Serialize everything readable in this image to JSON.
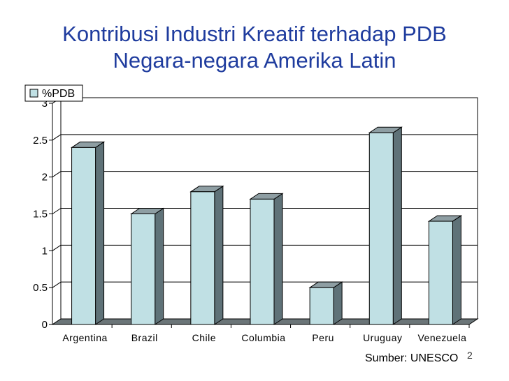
{
  "slide": {
    "title_line1": "Kontribusi Industri Kreatif terhadap PDB",
    "title_line2": "Negara-negara Amerika Latin",
    "source": "Sumber: UNESCO",
    "slide_number": "2"
  },
  "chart_data": {
    "type": "bar",
    "style": "3d",
    "categories": [
      "Argentina",
      "Brazil",
      "Chile",
      "Columbia",
      "Peru",
      "Uruguay",
      "Venezuela"
    ],
    "series": [
      {
        "name": "%PDB",
        "values": [
          2.4,
          1.5,
          1.8,
          1.7,
          0.5,
          2.6,
          1.4
        ]
      }
    ],
    "ylim": [
      0,
      3
    ],
    "yticks": [
      "0",
      "0.5",
      "1",
      "1.5",
      "2",
      "2.5",
      "3"
    ],
    "grid": true,
    "legend": "top-left",
    "colors": {
      "bar_front": "#c0e0e4",
      "bar_side": "#5f7278",
      "bar_top": "#8e9ea3",
      "floor": "#6b7578"
    }
  }
}
